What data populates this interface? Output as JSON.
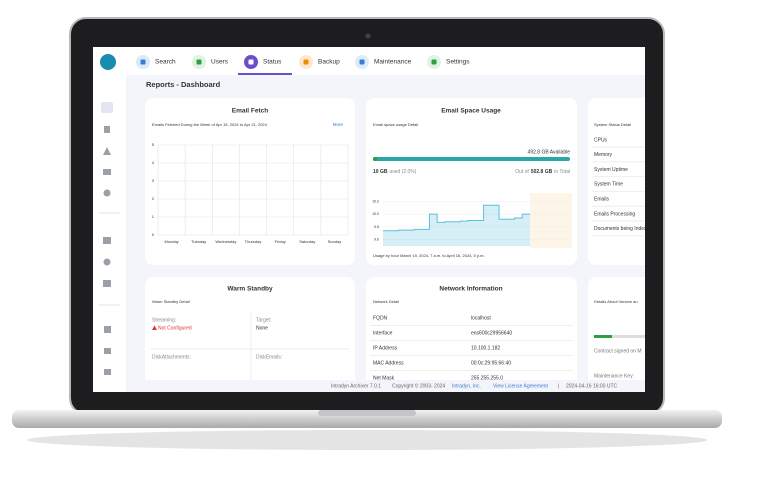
{
  "nav": {
    "tabs": [
      "Search",
      "Users",
      "Status",
      "Backup",
      "Maintenance",
      "Settings"
    ]
  },
  "page_title": "Reports - Dashboard",
  "email_fetch": {
    "title": "Email Fetch",
    "subtitle": "Emails Fetched During the Week of Apr 15, 2024 to Apr 21, 2024",
    "link": "More",
    "chart": {
      "type": "line",
      "categories": [
        "Monday",
        "Tuesday",
        "Wednesday",
        "Thursday",
        "Friday",
        "Saturday",
        "Sunday"
      ],
      "ylim": [
        0,
        5
      ],
      "yticks": [
        0,
        1,
        2,
        3,
        4,
        5
      ],
      "grid": true
    }
  },
  "email_space": {
    "title": "Email Space Usage",
    "subtitle": "Email space usage Detail",
    "available": "492.8 GB Available",
    "used": "10 GB",
    "used_note": "used (2.0%)",
    "total_prefix": "Out of",
    "total": "502.8 GB",
    "total_suffix": "in Total",
    "chart": {
      "type": "area",
      "color": "#5bc0de",
      "ylim": [
        9.5,
        10.3
      ],
      "yticks": [
        9.6,
        9.8,
        {
          "value": 10,
          "label": "10.0"
        },
        10.2
      ],
      "values": [
        9.74,
        9.74,
        9.75,
        9.75,
        9.76,
        9.76,
        10.0,
        9.87,
        9.88,
        9.88,
        9.89,
        9.9,
        9.9,
        10.14,
        10.14,
        9.92,
        9.92,
        9.94,
        10.0,
        10.0
      ]
    },
    "caption": "Usage by hour March 19, 2024, 7 a.m. to April 16, 2024, 5 p.m."
  },
  "system_status": {
    "subtitle": "System Status Detail",
    "items": [
      "CPUs",
      "Memory",
      "System Uptime",
      "System Time",
      "Emails",
      "Emails Processing",
      "Documents being Index"
    ]
  },
  "warm_standby": {
    "title": "Warm Standby",
    "subtitle": "Warm Standby Detail",
    "streaming_label": "Streaming:",
    "streaming_value": "Not Configured",
    "target_label": "Target:",
    "target_value": "None",
    "disk_attachments_label": "DiskAttachments:",
    "disk_emails_label": "DiskEmails:"
  },
  "network": {
    "title": "Network Information",
    "subtitle": "Network Detail",
    "rows": [
      [
        "FQDN",
        "localhost"
      ],
      [
        "Interface",
        "ens600c29956640"
      ],
      [
        "IP Address",
        "10.100.1.182"
      ],
      [
        "MAC Address",
        "00:0c:29:95:66:40"
      ],
      [
        "Net Mask",
        "255.255.255.0"
      ]
    ]
  },
  "version": {
    "subtitle": "Details About Version an",
    "contract": "Contract signed on M",
    "maintenance": "Maintenance Key:"
  },
  "footer": {
    "product": "Intradyn Archiver 7.0.1",
    "copyright": "Copyright © 2003- 2024",
    "company": "Intradyn, Inc.",
    "license": "View License Agreement",
    "separator": "|",
    "timestamp": "2024-04-16 16:00 UTC"
  }
}
